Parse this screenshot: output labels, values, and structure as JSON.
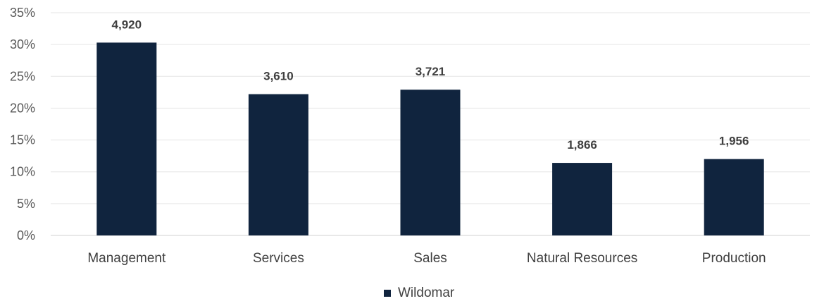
{
  "chart_data": {
    "type": "bar",
    "categories": [
      "Management",
      "Services",
      "Sales",
      "Natural Resources",
      "Production"
    ],
    "series": [
      {
        "name": "Wildomar",
        "values": [
          30.3,
          22.2,
          22.9,
          11.4,
          12.0
        ],
        "data_labels": [
          "4,920",
          "3,610",
          "3,721",
          "1,866",
          "1,956"
        ]
      }
    ],
    "ylim": [
      0,
      35
    ],
    "yticks": [
      "0%",
      "5%",
      "10%",
      "15%",
      "20%",
      "25%",
      "30%",
      "35%"
    ],
    "ytick_values": [
      0,
      5,
      10,
      15,
      20,
      25,
      30,
      35
    ],
    "title": "",
    "xlabel": "",
    "ylabel": "",
    "grid": true,
    "legend": "bottom",
    "bar_color": "#10243e"
  }
}
